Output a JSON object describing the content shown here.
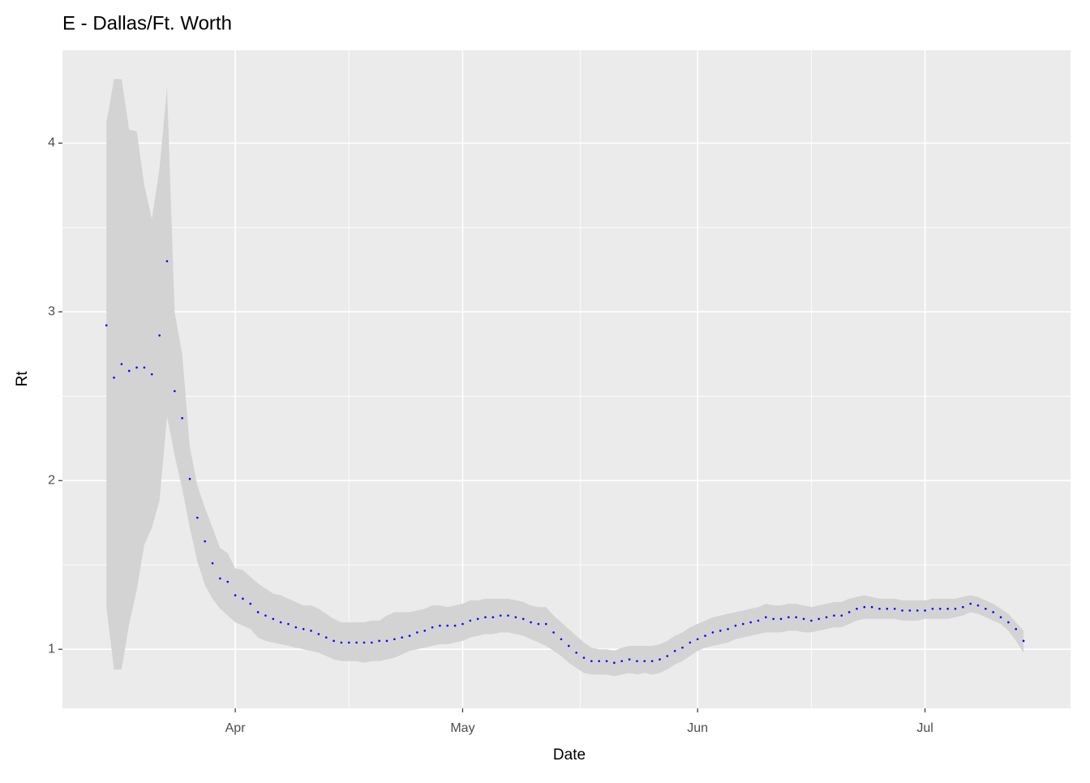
{
  "chart_data": {
    "type": "ribbon-points",
    "title": "E - Dallas/Ft. Worth",
    "x_label": "Date",
    "y_label": "Rt",
    "x": [
      15,
      16,
      17,
      18,
      19,
      20,
      21,
      22,
      23,
      24,
      25,
      26,
      27,
      28,
      29,
      30,
      31,
      32,
      33,
      34,
      35,
      36,
      37,
      38,
      39,
      40,
      41,
      42,
      43,
      44,
      45,
      46,
      47,
      48,
      49,
      50,
      51,
      52,
      53,
      54,
      55,
      56,
      57,
      58,
      59,
      60,
      61,
      62,
      63,
      64,
      65,
      66,
      67,
      68,
      69,
      70,
      71,
      72,
      73,
      74,
      75,
      76,
      77,
      78,
      79,
      80,
      81,
      82,
      83,
      84,
      85,
      86,
      87,
      88,
      89,
      90,
      91,
      92,
      93,
      94,
      95,
      96,
      97,
      98,
      99,
      100,
      101,
      102,
      103,
      104,
      105,
      106,
      107,
      108,
      109,
      110,
      111,
      112,
      113,
      114,
      115,
      116,
      117,
      118,
      119,
      120,
      121,
      122,
      123,
      124,
      125,
      126,
      127,
      128,
      129,
      130,
      131,
      132,
      133,
      134,
      135,
      136
    ],
    "values": [
      2.92,
      2.61,
      2.69,
      2.65,
      2.67,
      2.67,
      2.63,
      2.86,
      3.3,
      2.53,
      2.37,
      2.01,
      1.78,
      1.64,
      1.51,
      1.42,
      1.4,
      1.32,
      1.3,
      1.27,
      1.22,
      1.2,
      1.18,
      1.16,
      1.15,
      1.13,
      1.12,
      1.11,
      1.09,
      1.07,
      1.05,
      1.04,
      1.04,
      1.04,
      1.04,
      1.04,
      1.05,
      1.05,
      1.06,
      1.07,
      1.08,
      1.1,
      1.11,
      1.13,
      1.14,
      1.14,
      1.14,
      1.15,
      1.17,
      1.18,
      1.19,
      1.19,
      1.2,
      1.2,
      1.19,
      1.18,
      1.16,
      1.15,
      1.15,
      1.1,
      1.06,
      1.02,
      0.98,
      0.95,
      0.93,
      0.93,
      0.93,
      0.92,
      0.93,
      0.94,
      0.93,
      0.93,
      0.93,
      0.94,
      0.96,
      0.99,
      1.01,
      1.04,
      1.06,
      1.08,
      1.1,
      1.11,
      1.12,
      1.14,
      1.15,
      1.16,
      1.17,
      1.19,
      1.18,
      1.18,
      1.19,
      1.19,
      1.18,
      1.17,
      1.18,
      1.19,
      1.2,
      1.2,
      1.22,
      1.24,
      1.25,
      1.25,
      1.24,
      1.24,
      1.24,
      1.23,
      1.23,
      1.23,
      1.23,
      1.24,
      1.24,
      1.24,
      1.24,
      1.25,
      1.27,
      1.26,
      1.24,
      1.22,
      1.19,
      1.16,
      1.12,
      1.05
    ],
    "lower": [
      1.25,
      0.88,
      0.88,
      1.15,
      1.35,
      1.62,
      1.72,
      1.88,
      2.38,
      2.15,
      1.95,
      1.72,
      1.52,
      1.38,
      1.3,
      1.24,
      1.2,
      1.16,
      1.14,
      1.12,
      1.07,
      1.05,
      1.04,
      1.03,
      1.02,
      1.01,
      1.0,
      0.99,
      0.98,
      0.96,
      0.94,
      0.93,
      0.93,
      0.93,
      0.92,
      0.93,
      0.93,
      0.94,
      0.95,
      0.97,
      0.99,
      1.0,
      1.01,
      1.02,
      1.03,
      1.03,
      1.04,
      1.05,
      1.07,
      1.08,
      1.09,
      1.09,
      1.1,
      1.1,
      1.09,
      1.08,
      1.06,
      1.04,
      1.02,
      0.99,
      0.96,
      0.92,
      0.89,
      0.86,
      0.85,
      0.85,
      0.85,
      0.84,
      0.85,
      0.86,
      0.85,
      0.86,
      0.85,
      0.86,
      0.88,
      0.91,
      0.93,
      0.96,
      0.99,
      1.01,
      1.02,
      1.03,
      1.04,
      1.06,
      1.07,
      1.08,
      1.09,
      1.1,
      1.1,
      1.1,
      1.11,
      1.11,
      1.1,
      1.1,
      1.11,
      1.12,
      1.13,
      1.13,
      1.15,
      1.17,
      1.18,
      1.18,
      1.18,
      1.18,
      1.18,
      1.17,
      1.17,
      1.17,
      1.18,
      1.18,
      1.18,
      1.18,
      1.19,
      1.2,
      1.22,
      1.21,
      1.19,
      1.17,
      1.15,
      1.11,
      1.05,
      0.98
    ],
    "upper": [
      4.12,
      4.38,
      4.38,
      4.08,
      4.07,
      3.75,
      3.55,
      3.85,
      4.33,
      3.0,
      2.75,
      2.2,
      1.97,
      1.84,
      1.72,
      1.6,
      1.57,
      1.48,
      1.47,
      1.43,
      1.39,
      1.36,
      1.33,
      1.32,
      1.3,
      1.28,
      1.26,
      1.26,
      1.24,
      1.21,
      1.18,
      1.16,
      1.16,
      1.16,
      1.16,
      1.17,
      1.17,
      1.2,
      1.22,
      1.22,
      1.22,
      1.23,
      1.24,
      1.26,
      1.26,
      1.25,
      1.26,
      1.27,
      1.29,
      1.29,
      1.3,
      1.3,
      1.3,
      1.3,
      1.29,
      1.28,
      1.26,
      1.25,
      1.25,
      1.2,
      1.16,
      1.12,
      1.08,
      1.04,
      1.01,
      1.0,
      1.0,
      0.99,
      1.01,
      1.02,
      1.02,
      1.02,
      1.02,
      1.03,
      1.05,
      1.08,
      1.1,
      1.13,
      1.15,
      1.17,
      1.19,
      1.2,
      1.21,
      1.22,
      1.23,
      1.24,
      1.25,
      1.27,
      1.26,
      1.26,
      1.27,
      1.27,
      1.26,
      1.25,
      1.26,
      1.27,
      1.28,
      1.28,
      1.3,
      1.31,
      1.32,
      1.31,
      1.3,
      1.3,
      1.3,
      1.29,
      1.29,
      1.29,
      1.29,
      1.3,
      1.3,
      1.3,
      1.3,
      1.31,
      1.32,
      1.31,
      1.29,
      1.27,
      1.24,
      1.21,
      1.16,
      1.11
    ],
    "color": "#0000ff",
    "band_color": "#d3d3d3",
    "xlim": [
      9.2,
      142.2
    ],
    "xticks": [
      {
        "value": 32,
        "label": "Apr"
      },
      {
        "value": 62,
        "label": "May"
      },
      {
        "value": 93,
        "label": "Jun"
      },
      {
        "value": 123,
        "label": "Jul"
      }
    ],
    "ylim": [
      0.65,
      4.55
    ],
    "yticks": [
      1,
      2,
      3,
      4
    ],
    "grid": true
  }
}
